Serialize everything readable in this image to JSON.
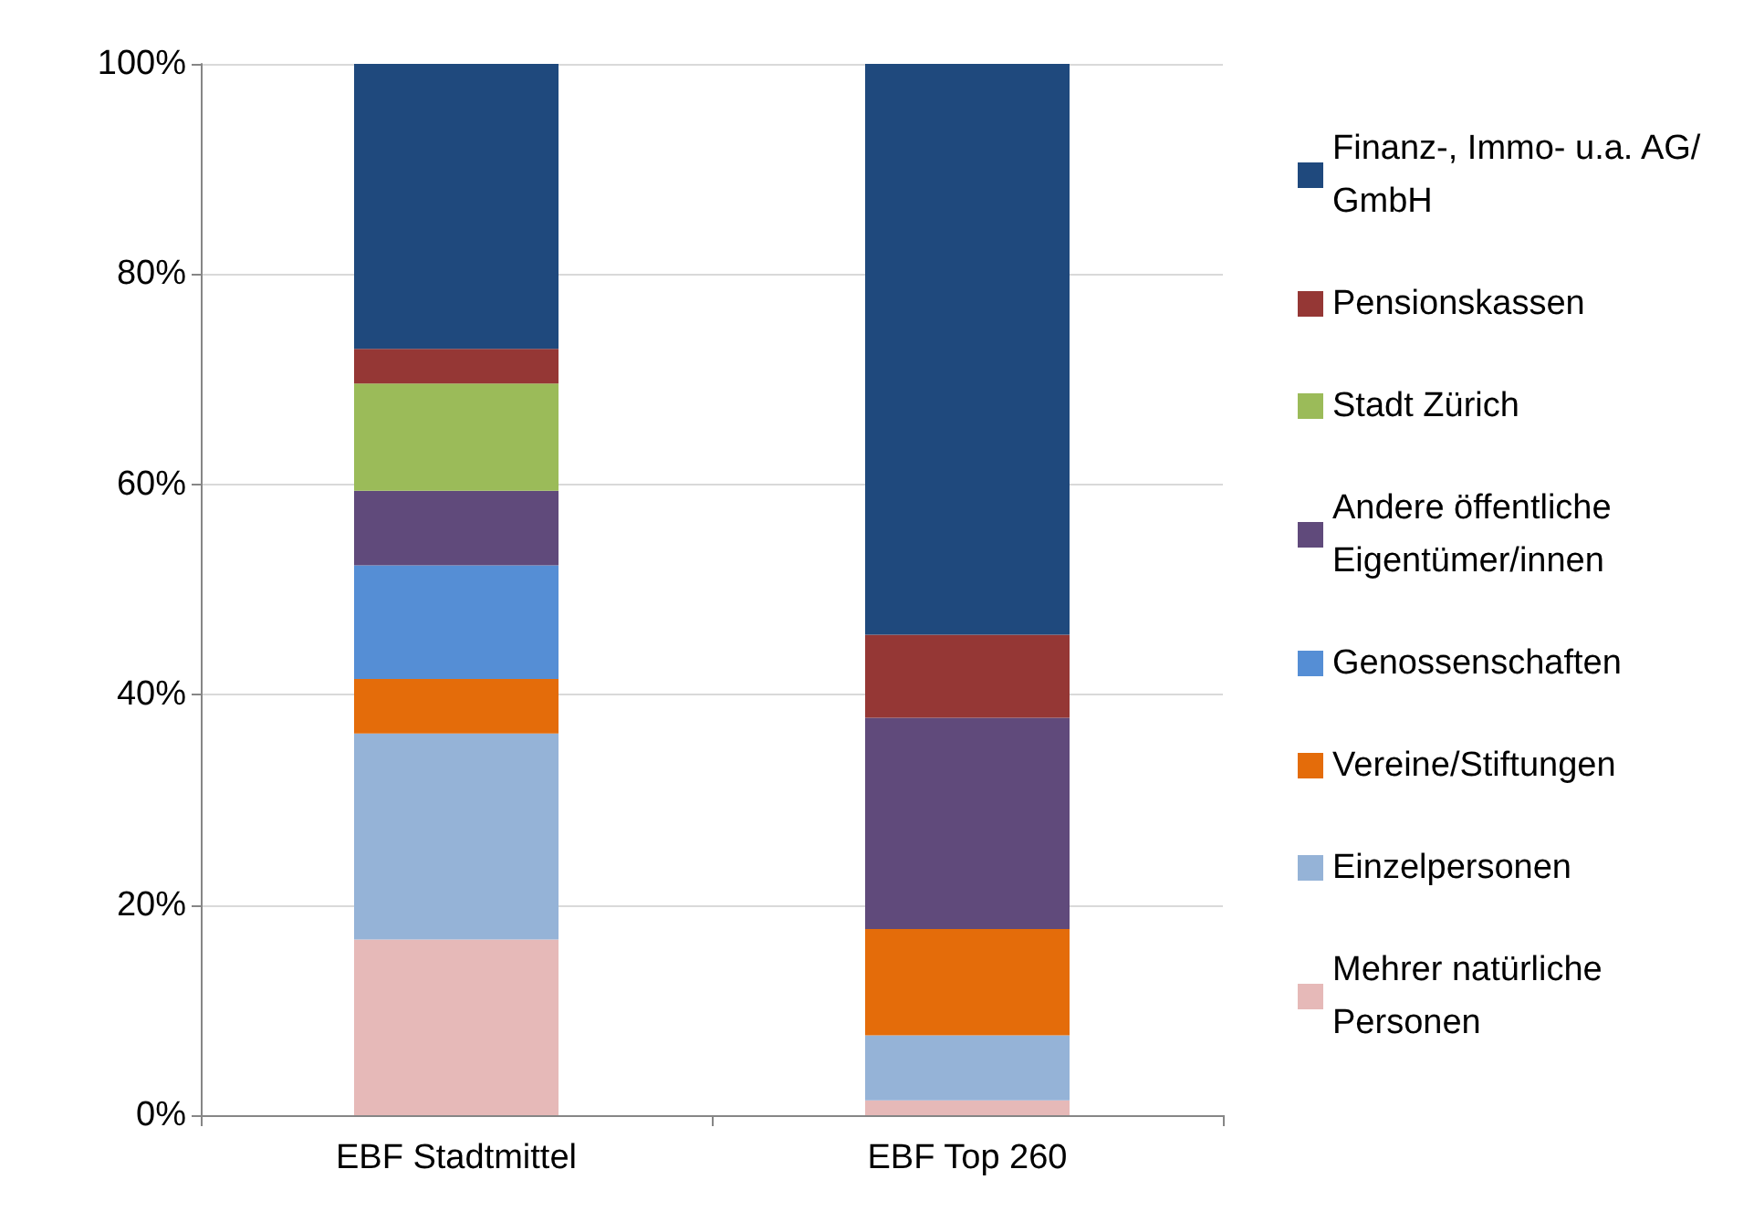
{
  "chart_data": {
    "type": "bar",
    "stacked": true,
    "categories": [
      "EBF Stadtmittel",
      "EBF Top 260"
    ],
    "series": [
      {
        "name": "Mehrer natürliche Personen",
        "color": "#e6b9b8",
        "values": [
          16.7,
          1.4
        ]
      },
      {
        "name": "Einzelpersonen",
        "color": "#95b3d7",
        "values": [
          19.6,
          6.2
        ]
      },
      {
        "name": "Vereine/Stiftungen",
        "color": "#e46c0a",
        "values": [
          5.2,
          10.1
        ]
      },
      {
        "name": "Genossenschaften",
        "color": "#558ed5",
        "values": [
          10.8,
          0
        ]
      },
      {
        "name": "Andere öffentliche Eigentümer/innen",
        "color": "#604a7b",
        "values": [
          7.1,
          20.1
        ]
      },
      {
        "name": "Stadt Zürich",
        "color": "#9bbb59",
        "values": [
          10.2,
          0
        ]
      },
      {
        "name": "Pensionskassen",
        "color": "#953735",
        "values": [
          3.3,
          7.9
        ]
      },
      {
        "name": "Finanz-, Immo- u.a. AG/GmbH",
        "color": "#1f497d",
        "values": [
          27.1,
          54.3
        ]
      }
    ],
    "ylim": [
      0,
      100
    ],
    "yticks": [
      {
        "value": 0,
        "label": "0%"
      },
      {
        "value": 20,
        "label": "20%"
      },
      {
        "value": 40,
        "label": "40%"
      },
      {
        "value": 60,
        "label": "60%"
      },
      {
        "value": 80,
        "label": "80%"
      },
      {
        "value": 100,
        "label": "100%"
      }
    ],
    "grid": "y",
    "legend": "right"
  }
}
